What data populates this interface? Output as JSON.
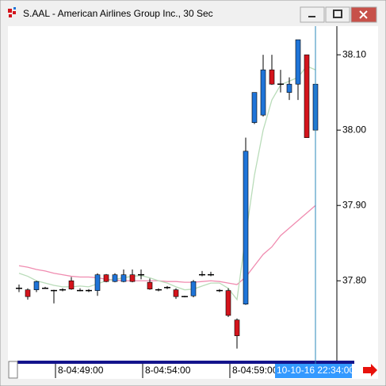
{
  "window": {
    "title": "S.AAL - American Airlines Group Inc., 30 Sec"
  },
  "chart_data": {
    "type": "candlestick",
    "categories": [
      null,
      null,
      null,
      null,
      "8-04:49:00",
      null,
      null,
      null,
      null,
      null,
      null,
      null,
      null,
      null,
      "8-04:54:00",
      null,
      null,
      null,
      null,
      null,
      null,
      null,
      null,
      null,
      "8-04:59:00",
      null,
      null,
      null,
      null,
      null,
      null,
      null,
      null,
      null,
      null
    ],
    "open": [
      37.79,
      37.788,
      37.788,
      37.79,
      37.787,
      37.788,
      37.8,
      37.787,
      37.787,
      37.787,
      37.808,
      37.799,
      37.799,
      37.808,
      37.808,
      37.798,
      37.788,
      37.791,
      37.788,
      37.779,
      37.78,
      37.808,
      37.808,
      37.787,
      37.787,
      37.748,
      37.769,
      38.01,
      38.02,
      38.08,
      38.061,
      38.05,
      38.061,
      38.1,
      38.0
    ],
    "high": [
      37.795,
      37.79,
      37.8,
      37.792,
      37.788,
      37.79,
      37.805,
      37.79,
      37.789,
      37.81,
      37.809,
      37.81,
      37.815,
      37.815,
      37.815,
      37.803,
      37.79,
      37.793,
      37.79,
      37.78,
      37.801,
      37.813,
      37.812,
      37.789,
      37.79,
      37.75,
      37.99,
      38.05,
      38.1,
      38.1,
      38.08,
      38.07,
      38.12,
      38.1,
      38.061
    ],
    "low": [
      37.785,
      37.775,
      37.785,
      37.79,
      37.77,
      37.786,
      37.788,
      37.786,
      37.785,
      37.78,
      37.798,
      37.798,
      37.798,
      37.798,
      37.802,
      37.788,
      37.786,
      37.789,
      37.776,
      37.778,
      37.778,
      37.806,
      37.806,
      37.785,
      37.752,
      37.71,
      37.768,
      38.008,
      38.018,
      38.06,
      38.05,
      38.04,
      38.04,
      37.99,
      37.999
    ],
    "close": [
      37.79,
      37.779,
      37.799,
      37.79,
      37.787,
      37.788,
      37.789,
      37.787,
      37.787,
      37.808,
      37.799,
      37.808,
      37.808,
      37.799,
      37.808,
      37.789,
      37.788,
      37.791,
      37.779,
      37.779,
      37.799,
      37.808,
      37.808,
      37.787,
      37.754,
      37.727,
      37.972,
      38.05,
      38.08,
      38.061,
      38.061,
      38.061,
      38.12,
      37.99,
      38.061
    ],
    "up_color": "#1f74d8",
    "down_color": "#d4141c",
    "doji_color": "#000000",
    "lines": [
      {
        "color": "#f08cb0",
        "values": [
          37.82,
          37.818,
          37.815,
          37.813,
          37.81,
          37.808,
          37.806,
          37.805,
          37.805,
          37.804,
          37.802,
          37.801,
          37.8,
          37.8,
          37.8,
          37.8,
          37.8,
          37.799,
          37.799,
          37.798,
          37.798,
          37.799,
          37.8,
          37.799,
          37.797,
          37.795,
          37.805,
          37.82,
          37.835,
          37.845,
          37.86,
          37.87,
          37.88,
          37.89,
          37.9
        ]
      },
      {
        "color": "#b9dcb9",
        "values": [
          37.81,
          37.806,
          37.8,
          37.797,
          37.794,
          37.792,
          37.792,
          37.793,
          37.792,
          37.796,
          37.8,
          37.802,
          37.804,
          37.806,
          37.807,
          37.804,
          37.8,
          37.797,
          37.792,
          37.788,
          37.789,
          37.793,
          37.797,
          37.797,
          37.79,
          37.775,
          37.86,
          37.94,
          38.0,
          38.04,
          38.06,
          38.065,
          38.07,
          38.085,
          38.08
        ]
      }
    ],
    "ylim": [
      37.694,
      38.138
    ],
    "yticks": [
      {
        "value": 37.8,
        "label": "37.80"
      },
      {
        "value": 37.9,
        "label": "37.90"
      },
      {
        "value": 38.0,
        "label": "38.00"
      },
      {
        "value": 38.1,
        "label": "38.10"
      }
    ],
    "cursor_label": "10-10-16 22:34:00"
  }
}
